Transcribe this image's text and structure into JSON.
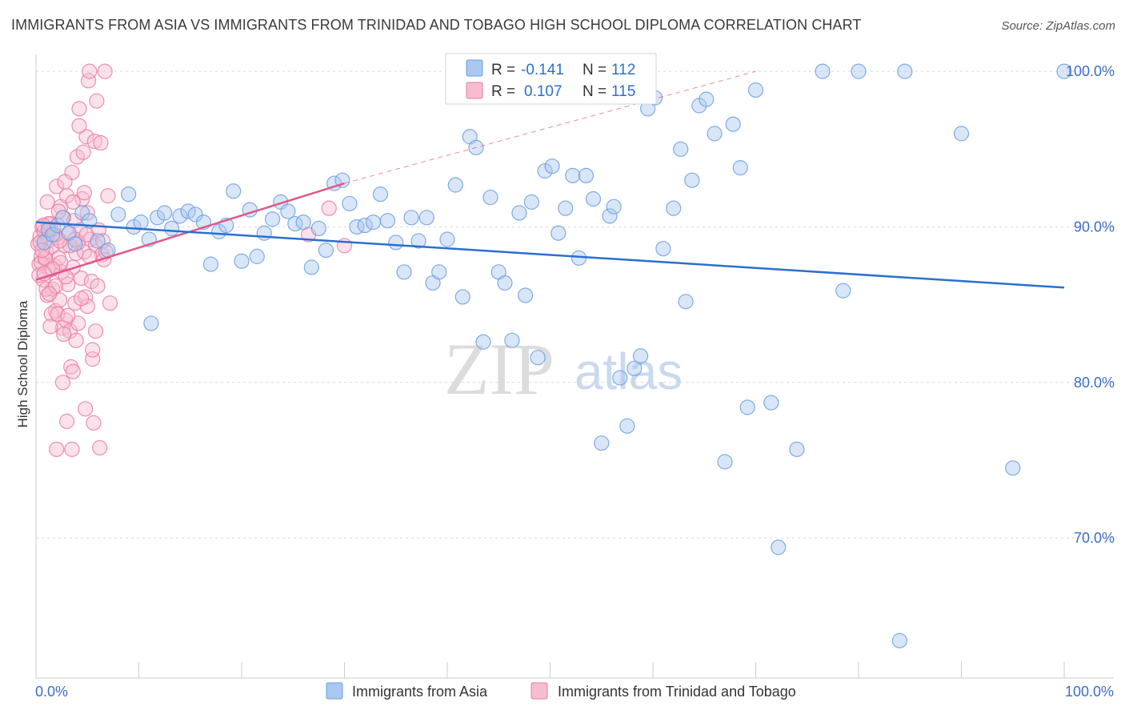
{
  "title": "IMMIGRANTS FROM ASIA VS IMMIGRANTS FROM TRINIDAD AND TOBAGO HIGH SCHOOL DIPLOMA CORRELATION CHART",
  "source": "Source: ZipAtlas.com",
  "watermark": {
    "zip": "ZIP",
    "atlas": "atlas"
  },
  "colors": {
    "asia": "#6a9fe0",
    "asia_fill": "#aac8f0",
    "asia_line": "#2b6fce",
    "tt": "#ea7ca2",
    "tt_fill": "#f7bcd0",
    "tt_line": "#e0578a",
    "axis_text": "#3a6fc4",
    "grid": "#d9d9d9"
  },
  "chart_data": {
    "type": "scatter",
    "title": "IMMIGRANTS FROM ASIA VS IMMIGRANTS FROM TRINIDAD AND TOBAGO HIGH SCHOOL DIPLOMA CORRELATION CHART",
    "xlabel": "",
    "ylabel": "High School Diploma",
    "xlim": [
      0,
      100
    ],
    "ylim": [
      61,
      101.5
    ],
    "x_tick_labels": [
      "0.0%",
      "100.0%"
    ],
    "y_ticks": [
      70,
      80,
      90,
      100
    ],
    "y_tick_labels": [
      "70.0%",
      "80.0%",
      "90.0%",
      "100.0%"
    ],
    "grid": true,
    "legend_position": "top-center",
    "series": [
      {
        "name": "Immigrants from Asia",
        "legend_r": "-0.141",
        "legend_n": "112",
        "trend": {
          "x0": 0,
          "y0": 90.3,
          "x1": 100,
          "y1": 86.1
        },
        "points": [
          [
            0.8,
            89.0
          ],
          [
            1.2,
            89.8
          ],
          [
            1.6,
            89.5
          ],
          [
            2.1,
            90.1
          ],
          [
            2.6,
            90.6
          ],
          [
            3.2,
            89.6
          ],
          [
            3.8,
            88.9
          ],
          [
            4.5,
            90.9
          ],
          [
            5.2,
            90.4
          ],
          [
            6.0,
            89.1
          ],
          [
            7.0,
            88.5
          ],
          [
            8.0,
            90.8
          ],
          [
            9.0,
            92.1
          ],
          [
            9.5,
            90.0
          ],
          [
            10.2,
            90.3
          ],
          [
            11.0,
            89.2
          ],
          [
            11.8,
            90.6
          ],
          [
            12.5,
            90.9
          ],
          [
            13.2,
            89.9
          ],
          [
            14.0,
            90.7
          ],
          [
            14.8,
            91.0
          ],
          [
            15.5,
            90.8
          ],
          [
            16.3,
            90.3
          ],
          [
            17.0,
            87.6
          ],
          [
            17.8,
            89.7
          ],
          [
            18.5,
            90.1
          ],
          [
            19.2,
            92.3
          ],
          [
            20.0,
            87.8
          ],
          [
            20.8,
            91.1
          ],
          [
            21.5,
            88.1
          ],
          [
            22.2,
            89.6
          ],
          [
            23.0,
            90.5
          ],
          [
            23.8,
            91.6
          ],
          [
            24.5,
            91.0
          ],
          [
            25.2,
            90.2
          ],
          [
            26.0,
            90.3
          ],
          [
            26.8,
            87.4
          ],
          [
            27.5,
            89.9
          ],
          [
            28.2,
            88.5
          ],
          [
            29.0,
            92.8
          ],
          [
            29.8,
            93.0
          ],
          [
            30.5,
            91.5
          ],
          [
            31.2,
            90.0
          ],
          [
            32.0,
            90.1
          ],
          [
            32.8,
            90.3
          ],
          [
            33.5,
            92.1
          ],
          [
            34.2,
            90.4
          ],
          [
            35.0,
            89.0
          ],
          [
            35.8,
            87.1
          ],
          [
            36.5,
            90.6
          ],
          [
            37.2,
            89.1
          ],
          [
            38.0,
            90.6
          ],
          [
            38.6,
            86.4
          ],
          [
            39.2,
            87.1
          ],
          [
            40.0,
            89.2
          ],
          [
            40.8,
            92.7
          ],
          [
            41.5,
            85.5
          ],
          [
            42.2,
            95.8
          ],
          [
            42.8,
            95.1
          ],
          [
            43.5,
            82.6
          ],
          [
            44.2,
            91.9
          ],
          [
            45.0,
            87.1
          ],
          [
            45.6,
            86.4
          ],
          [
            46.3,
            82.7
          ],
          [
            47.0,
            90.9
          ],
          [
            47.6,
            85.6
          ],
          [
            48.2,
            91.6
          ],
          [
            48.8,
            81.6
          ],
          [
            49.5,
            93.6
          ],
          [
            50.2,
            93.9
          ],
          [
            50.8,
            89.6
          ],
          [
            51.5,
            91.2
          ],
          [
            52.2,
            93.3
          ],
          [
            52.8,
            88.0
          ],
          [
            53.5,
            93.3
          ],
          [
            54.2,
            91.8
          ],
          [
            55.0,
            76.1
          ],
          [
            55.8,
            90.7
          ],
          [
            56.2,
            91.3
          ],
          [
            56.8,
            80.3
          ],
          [
            57.5,
            77.2
          ],
          [
            58.2,
            80.9
          ],
          [
            58.8,
            81.7
          ],
          [
            59.5,
            97.6
          ],
          [
            60.2,
            98.3
          ],
          [
            61.0,
            88.6
          ],
          [
            62.0,
            91.2
          ],
          [
            62.7,
            95.0
          ],
          [
            63.2,
            85.2
          ],
          [
            63.8,
            93.0
          ],
          [
            64.5,
            97.8
          ],
          [
            65.2,
            98.2
          ],
          [
            66.0,
            96.0
          ],
          [
            67.0,
            74.9
          ],
          [
            67.8,
            96.6
          ],
          [
            68.5,
            93.8
          ],
          [
            69.2,
            78.4
          ],
          [
            70.0,
            98.8
          ],
          [
            71.5,
            78.7
          ],
          [
            72.2,
            69.4
          ],
          [
            74.0,
            75.7
          ],
          [
            76.5,
            100.0
          ],
          [
            78.5,
            85.9
          ],
          [
            80.0,
            100.0
          ],
          [
            84.0,
            63.4
          ],
          [
            84.5,
            100.0
          ],
          [
            90.0,
            96.0
          ],
          [
            95.0,
            74.5
          ],
          [
            100.0,
            100.0
          ],
          [
            11.2,
            83.8
          ]
        ]
      },
      {
        "name": "Immigrants from Trinidad and Tobago",
        "legend_r": "0.107",
        "legend_n": "115",
        "trend": {
          "x0": 0,
          "y0": 86.6,
          "x1": 30,
          "y1": 92.8
        },
        "trend_dashed": {
          "x0": 30,
          "y0": 92.8,
          "x1": 70,
          "y1": 100.0
        },
        "points": [
          [
            0.2,
            88.9
          ],
          [
            0.3,
            87.6
          ],
          [
            0.4,
            89.4
          ],
          [
            0.5,
            88.1
          ],
          [
            0.6,
            90.0
          ],
          [
            0.7,
            86.6
          ],
          [
            0.8,
            89.7
          ],
          [
            0.9,
            87.9
          ],
          [
            1.0,
            88.4
          ],
          [
            1.1,
            85.6
          ],
          [
            1.2,
            89.1
          ],
          [
            1.3,
            87.2
          ],
          [
            1.4,
            90.2
          ],
          [
            1.5,
            88.7
          ],
          [
            1.6,
            86.0
          ],
          [
            1.7,
            89.9
          ],
          [
            1.8,
            87.5
          ],
          [
            1.9,
            84.6
          ],
          [
            2.0,
            92.6
          ],
          [
            2.1,
            89.3
          ],
          [
            2.2,
            88.0
          ],
          [
            2.3,
            85.3
          ],
          [
            2.4,
            91.3
          ],
          [
            2.5,
            87.1
          ],
          [
            2.6,
            83.5
          ],
          [
            2.7,
            90.6
          ],
          [
            2.8,
            88.8
          ],
          [
            2.9,
            84.0
          ],
          [
            3.0,
            92.0
          ],
          [
            3.1,
            86.3
          ],
          [
            3.2,
            89.6
          ],
          [
            3.3,
            83.3
          ],
          [
            3.4,
            81.0
          ],
          [
            3.5,
            93.5
          ],
          [
            3.6,
            87.4
          ],
          [
            3.7,
            90.4
          ],
          [
            3.8,
            85.1
          ],
          [
            3.9,
            88.3
          ],
          [
            4.0,
            94.5
          ],
          [
            4.1,
            83.8
          ],
          [
            4.2,
            97.6
          ],
          [
            4.3,
            89.8
          ],
          [
            4.4,
            86.7
          ],
          [
            4.5,
            91.8
          ],
          [
            4.6,
            94.8
          ],
          [
            4.7,
            88.4
          ],
          [
            4.8,
            85.5
          ],
          [
            4.9,
            95.8
          ],
          [
            5.0,
            90.9
          ],
          [
            5.1,
            99.4
          ],
          [
            5.2,
            100.0
          ],
          [
            5.3,
            89.2
          ],
          [
            5.4,
            86.5
          ],
          [
            5.5,
            81.5
          ],
          [
            5.6,
            77.4
          ],
          [
            5.7,
            95.5
          ],
          [
            5.8,
            88.8
          ],
          [
            5.9,
            98.1
          ],
          [
            6.0,
            86.2
          ],
          [
            6.1,
            89.8
          ],
          [
            6.2,
            75.8
          ],
          [
            6.3,
            95.4
          ],
          [
            6.4,
            88.2
          ],
          [
            6.5,
            89.1
          ],
          [
            6.6,
            87.9
          ],
          [
            6.7,
            100.0
          ],
          [
            2.0,
            75.7
          ],
          [
            3.5,
            75.7
          ],
          [
            4.8,
            78.3
          ],
          [
            3.0,
            77.5
          ],
          [
            1.0,
            86.0
          ],
          [
            1.5,
            84.4
          ],
          [
            2.8,
            92.9
          ],
          [
            3.6,
            91.6
          ],
          [
            4.1,
            89.0
          ],
          [
            0.5,
            87.7
          ],
          [
            1.2,
            90.2
          ],
          [
            2.4,
            87.7
          ],
          [
            3.9,
            82.7
          ],
          [
            0.9,
            88.0
          ],
          [
            5.0,
            84.9
          ],
          [
            5.5,
            82.1
          ],
          [
            2.6,
            80.0
          ],
          [
            4.2,
            96.5
          ],
          [
            0.3,
            86.9
          ],
          [
            1.8,
            89.5
          ],
          [
            3.3,
            88.8
          ],
          [
            4.7,
            92.2
          ],
          [
            0.7,
            90.1
          ],
          [
            2.1,
            84.4
          ],
          [
            1.4,
            83.6
          ],
          [
            3.8,
            89.2
          ],
          [
            2.9,
            86.8
          ],
          [
            0.4,
            89.0
          ],
          [
            1.6,
            87.3
          ],
          [
            4.4,
            85.4
          ],
          [
            2.2,
            91.0
          ],
          [
            3.1,
            84.3
          ],
          [
            5.2,
            88.1
          ],
          [
            0.6,
            88.5
          ],
          [
            1.9,
            86.2
          ],
          [
            2.7,
            83.1
          ],
          [
            6.8,
            88.4
          ],
          [
            7.0,
            92.0
          ],
          [
            7.2,
            85.1
          ],
          [
            1.1,
            91.6
          ],
          [
            3.6,
            80.7
          ],
          [
            4.9,
            89.5
          ],
          [
            0.8,
            87.0
          ],
          [
            5.8,
            83.3
          ],
          [
            28.5,
            91.2
          ],
          [
            30.0,
            88.8
          ],
          [
            26.5,
            89.5
          ],
          [
            2.3,
            89.1
          ],
          [
            1.3,
            85.7
          ]
        ]
      }
    ]
  }
}
